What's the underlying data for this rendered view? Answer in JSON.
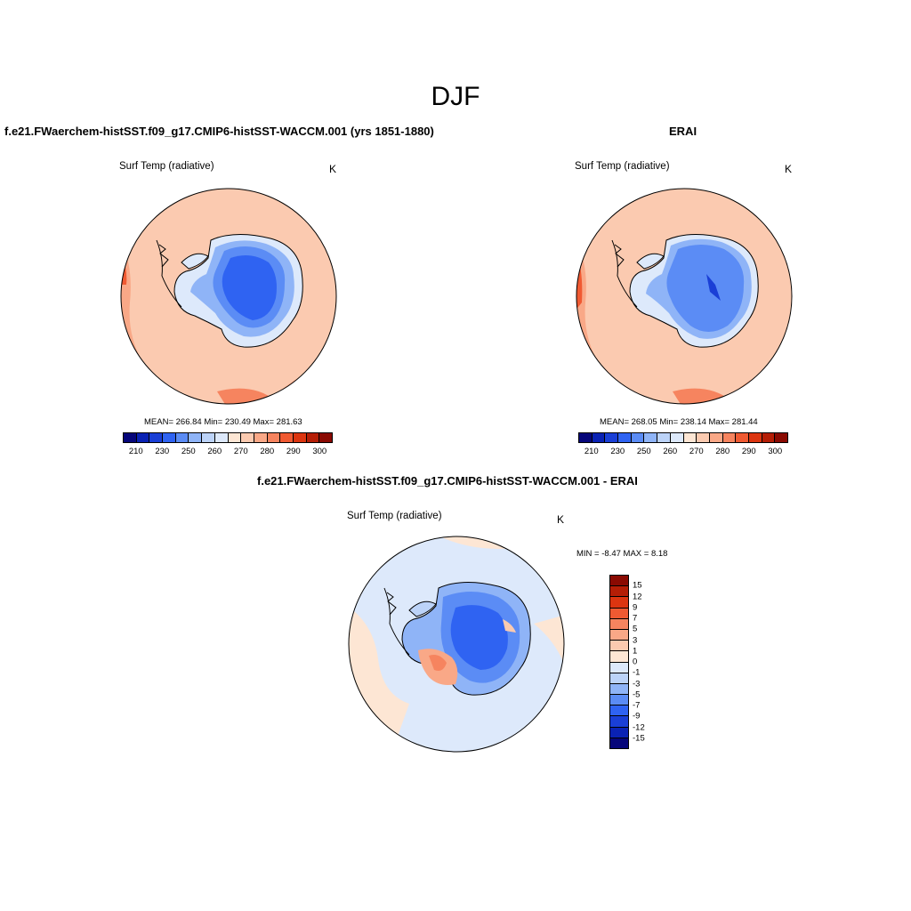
{
  "figure": {
    "season": "DJF"
  },
  "panel_model": {
    "title": "f.e21.FWaerchem-histSST.f09_g17.CMIP6-histSST-WACCM.001 (yrs 1851-1880)",
    "variable": "Surf Temp (radiative)",
    "units": "K",
    "stats": "MEAN= 266.84  Min= 230.49  Max= 281.63"
  },
  "panel_obs": {
    "title": "ERAI",
    "variable": "Surf Temp (radiative)",
    "units": "K",
    "stats": "MEAN= 268.05  Min= 238.14  Max= 281.44"
  },
  "panel_diff": {
    "title": "f.e21.FWaerchem-histSST.f09_g17.CMIP6-histSST-WACCM.001 - ERAI",
    "variable": "Surf Temp (radiative)",
    "units": "K",
    "minmax": "MIN =  -8.47 MAX =   8.18"
  },
  "colorbar_abs": {
    "tick_labels": [
      "210",
      "230",
      "250",
      "260",
      "270",
      "280",
      "290",
      "300"
    ],
    "colors": [
      "#06067a",
      "#0a22b4",
      "#1a3fd6",
      "#2f63f2",
      "#5b8cf5",
      "#8fb4f7",
      "#bcd3f8",
      "#dde9fb",
      "#fde6d4",
      "#fbcab0",
      "#f9a887",
      "#f6845f",
      "#f05a32",
      "#dc3510",
      "#b51e06",
      "#8a0a02"
    ]
  },
  "colorbar_diff": {
    "tick_labels": [
      "15",
      "12",
      "9",
      "7",
      "5",
      "3",
      "1",
      "0",
      "-1",
      "-3",
      "-5",
      "-7",
      "-9",
      "-12",
      "-15"
    ],
    "colors": [
      "#8a0a02",
      "#b51e06",
      "#dc3510",
      "#f05a32",
      "#f6845f",
      "#f9a887",
      "#fbcab0",
      "#fde6d4",
      "#dde9fb",
      "#bcd3f8",
      "#8fb4f7",
      "#5b8cf5",
      "#2f63f2",
      "#1a3fd6",
      "#0a22b4",
      "#06067a"
    ]
  }
}
